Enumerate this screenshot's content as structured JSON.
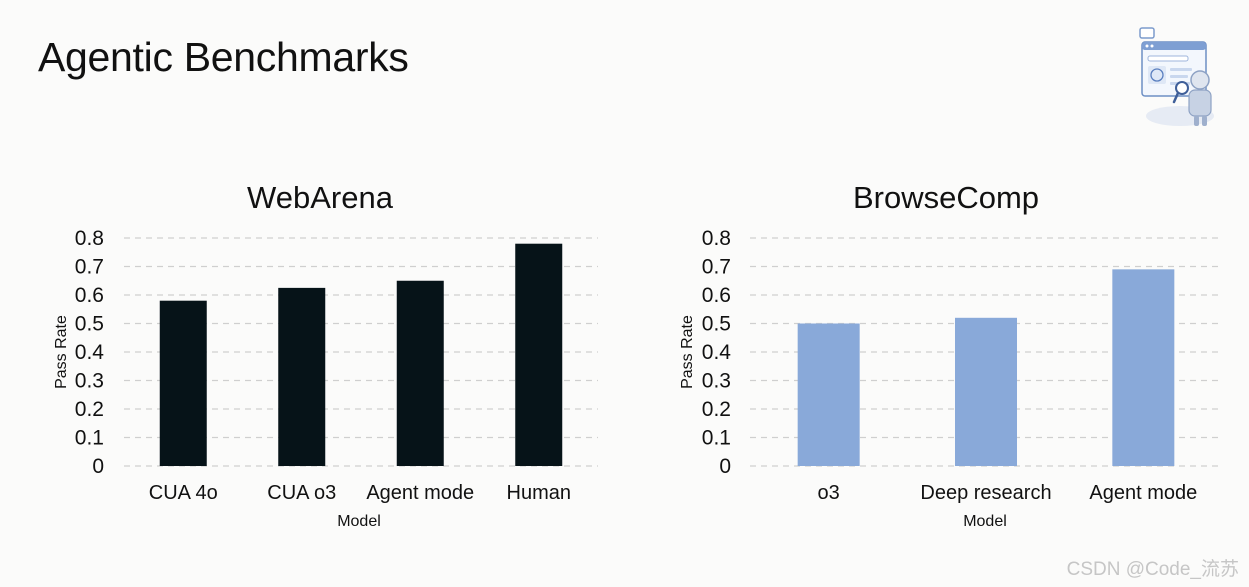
{
  "slide": {
    "title": "Agentic Benchmarks"
  },
  "colors": {
    "webarena_bars": "#061318",
    "browsecomp_bars": "#89a9d9",
    "grid": "#cfcfcf",
    "text": "#111111"
  },
  "icons": {
    "logo": "browser-robot-illustration-icon"
  },
  "watermark": "CSDN @Code_流苏",
  "chart_data": [
    {
      "type": "bar",
      "title": "WebArena",
      "xlabel": "Model",
      "ylabel": "Pass Rate",
      "categories": [
        "CUA 4o",
        "CUA o3",
        "Agent mode",
        "Human"
      ],
      "values": [
        0.58,
        0.625,
        0.65,
        0.78
      ],
      "ylim": [
        0,
        0.8
      ],
      "yticks": [
        "0",
        "0.1",
        "0.2",
        "0.3",
        "0.4",
        "0.5",
        "0.6",
        "0.7",
        "0.8"
      ],
      "grid": true,
      "color": "#061318"
    },
    {
      "type": "bar",
      "title": "BrowseComp",
      "xlabel": "Model",
      "ylabel": "Pass Rate",
      "categories": [
        "o3",
        "Deep research",
        "Agent mode"
      ],
      "values": [
        0.5,
        0.52,
        0.69
      ],
      "ylim": [
        0,
        0.8
      ],
      "yticks": [
        "0",
        "0.1",
        "0.2",
        "0.3",
        "0.4",
        "0.5",
        "0.6",
        "0.7",
        "0.8"
      ],
      "grid": true,
      "color": "#89a9d9"
    }
  ]
}
